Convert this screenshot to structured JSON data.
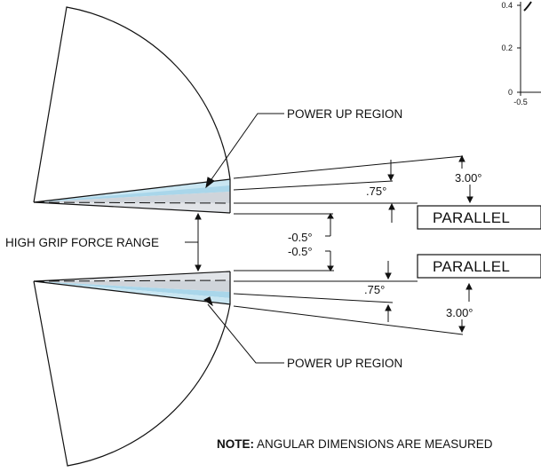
{
  "diagram": {
    "labels": {
      "power_up_region_top": "POWER UP REGION",
      "power_up_region_bottom": "POWER UP REGION",
      "high_grip_force_range": "HIGH GRIP FORCE RANGE",
      "parallel_top": "PARALLEL",
      "parallel_bottom": "PARALLEL"
    },
    "dimensions": {
      "angle_top_large": "3.00°",
      "angle_top_small": ".75°",
      "offset_1": "-0.5°",
      "offset_2": "-0.5°",
      "angle_bottom_small": ".75°",
      "angle_bottom_large": "3.00°"
    },
    "note": {
      "prefix": "NOTE:",
      "text": " ANGULAR DIMENSIONS ARE MEASURED"
    },
    "inset_chart": {
      "y_ticks": [
        "0.4",
        "0.2",
        "0"
      ],
      "x_ticks": [
        "-0.5"
      ]
    },
    "colors": {
      "power_up_light": "#c9e6f2",
      "power_up_mid": "#9fd0e6",
      "neutral_band": "#cfd4da",
      "line": "#111111"
    }
  }
}
